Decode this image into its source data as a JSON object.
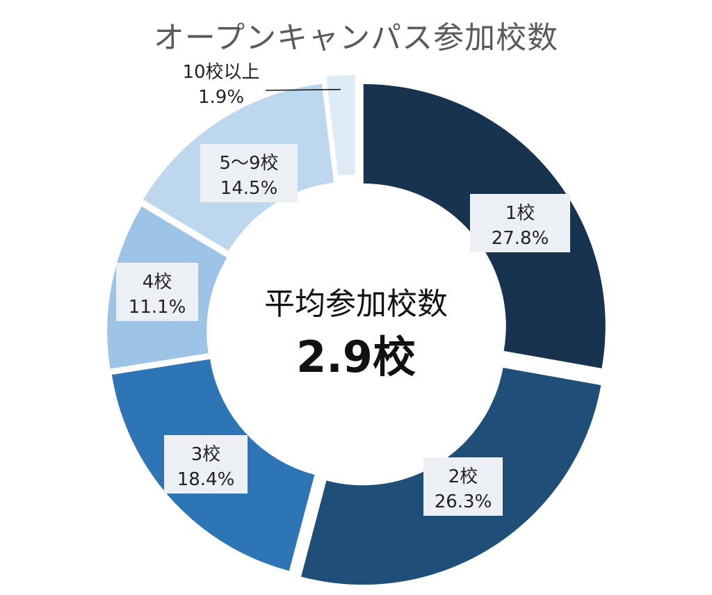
{
  "chart_data": {
    "type": "pie",
    "variant": "donut",
    "title": "オープンキャンパス参加校数",
    "center_label": "平均参加校数",
    "center_value": "2.9校",
    "slices": [
      {
        "category": "1校",
        "value": 27.8,
        "label": "27.8%",
        "color": "#17334f"
      },
      {
        "category": "2校",
        "value": 26.3,
        "label": "26.3%",
        "color": "#1f4e79"
      },
      {
        "category": "3校",
        "value": 18.4,
        "label": "18.4%",
        "color": "#2e75b6"
      },
      {
        "category": "4校",
        "value": 11.1,
        "label": "11.1%",
        "color": "#9dc3e6"
      },
      {
        "category": "5～9校",
        "value": 14.5,
        "label": "14.5%",
        "color": "#bdd7ee"
      },
      {
        "category": "10校以上",
        "value": 1.9,
        "label": "1.9%",
        "color": "#deebf7"
      }
    ],
    "legend": "none"
  }
}
